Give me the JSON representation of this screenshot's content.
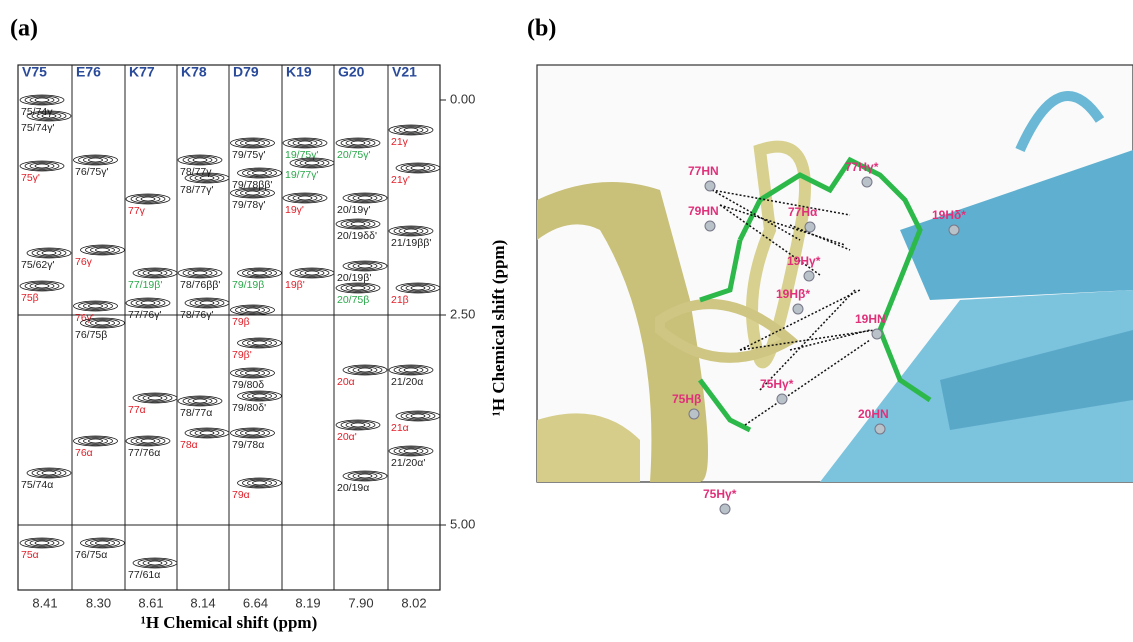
{
  "panel_a": {
    "label": "(a)",
    "x_axis_label": "¹H Chemical shift (ppm)",
    "y_axis_label": "¹H Chemical shift (ppm)",
    "y_ticks": [
      "0.00",
      "2.50",
      "5.00"
    ],
    "strips": [
      {
        "residue": "V75",
        "shift": "8.41",
        "annotations": [
          {
            "text": "75/74γ",
            "color": "#222222"
          },
          {
            "text": "75/74γ'",
            "color": "#222222"
          },
          {
            "text": "75γ'",
            "color": "#e0202a"
          },
          {
            "text": "75/62γ'",
            "color": "#222222"
          },
          {
            "text": "75β",
            "color": "#e0202a"
          },
          {
            "text": "75/74α",
            "color": "#222222"
          },
          {
            "text": "75α",
            "color": "#e0202a"
          }
        ]
      },
      {
        "residue": "E76",
        "shift": "8.30",
        "annotations": [
          {
            "text": "76/75γ'",
            "color": "#222222"
          },
          {
            "text": "76γ",
            "color": "#e0202a"
          },
          {
            "text": "76γ'",
            "color": "#e0202a"
          },
          {
            "text": "76/75β",
            "color": "#222222"
          },
          {
            "text": "76α",
            "color": "#e0202a"
          },
          {
            "text": "76/75α",
            "color": "#222222"
          }
        ]
      },
      {
        "residue": "K77",
        "shift": "8.61",
        "annotations": [
          {
            "text": "77γ",
            "color": "#e0202a"
          },
          {
            "text": "77/19β'",
            "color": "#2aa84a"
          },
          {
            "text": "77/76γ'",
            "color": "#222222"
          },
          {
            "text": "77α",
            "color": "#e0202a"
          },
          {
            "text": "77/76α",
            "color": "#222222"
          },
          {
            "text": "77/61α",
            "color": "#222222"
          }
        ]
      },
      {
        "residue": "K78",
        "shift": "8.14",
        "annotations": [
          {
            "text": "78/77γ",
            "color": "#222222"
          },
          {
            "text": "78/77γ'",
            "color": "#222222"
          },
          {
            "text": "78/76ββ'",
            "color": "#222222"
          },
          {
            "text": "78/76γ'",
            "color": "#222222"
          },
          {
            "text": "78/77α",
            "color": "#222222"
          },
          {
            "text": "78α",
            "color": "#e0202a"
          }
        ]
      },
      {
        "residue": "D79",
        "shift": "6.64",
        "annotations": [
          {
            "text": "79/75γ'",
            "color": "#222222"
          },
          {
            "text": "79/78ββ'",
            "color": "#222222"
          },
          {
            "text": "79/78γ'",
            "color": "#222222"
          },
          {
            "text": "79/19β",
            "color": "#2aa84a"
          },
          {
            "text": "79β",
            "color": "#e0202a"
          },
          {
            "text": "79β'",
            "color": "#e0202a"
          },
          {
            "text": "79/80δ",
            "color": "#222222"
          },
          {
            "text": "79/80δ'",
            "color": "#222222"
          },
          {
            "text": "79/78α",
            "color": "#222222"
          },
          {
            "text": "79α",
            "color": "#e0202a"
          }
        ]
      },
      {
        "residue": "K19",
        "shift": "8.19",
        "annotations": [
          {
            "text": "19/75γ'",
            "color": "#2aa84a"
          },
          {
            "text": "19/77γ'",
            "color": "#2aa84a"
          },
          {
            "text": "19γ'",
            "color": "#e0202a"
          },
          {
            "text": "19β'",
            "color": "#e0202a"
          }
        ]
      },
      {
        "residue": "G20",
        "shift": "7.90",
        "annotations": [
          {
            "text": "20/75γ'",
            "color": "#2aa84a"
          },
          {
            "text": "20/19γ'",
            "color": "#222222"
          },
          {
            "text": "20/19δδ'",
            "color": "#222222"
          },
          {
            "text": "20/19β'",
            "color": "#222222"
          },
          {
            "text": "20/75β",
            "color": "#2aa84a"
          },
          {
            "text": "20α",
            "color": "#e0202a"
          },
          {
            "text": "20α'",
            "color": "#e0202a"
          },
          {
            "text": "20/19α",
            "color": "#222222"
          }
        ]
      },
      {
        "residue": "V21",
        "shift": "8.02",
        "annotations": [
          {
            "text": "21γ",
            "color": "#e0202a"
          },
          {
            "text": "21γ'",
            "color": "#e0202a"
          },
          {
            "text": "21/19ββ'",
            "color": "#222222"
          },
          {
            "text": "21β",
            "color": "#e0202a"
          },
          {
            "text": "21/20α",
            "color": "#222222"
          },
          {
            "text": "21α",
            "color": "#e0202a"
          },
          {
            "text": "21/20α'",
            "color": "#222222"
          }
        ]
      }
    ]
  },
  "panel_b": {
    "label": "(b)",
    "atom_labels": [
      "77HN",
      "79HN",
      "77Hα",
      "77Hγ*",
      "19Hδ*",
      "19Hγ*",
      "19Hβ*",
      "19HN",
      "75Hβ",
      "75Hγ*",
      "20HN",
      "75Hγ*"
    ]
  }
}
